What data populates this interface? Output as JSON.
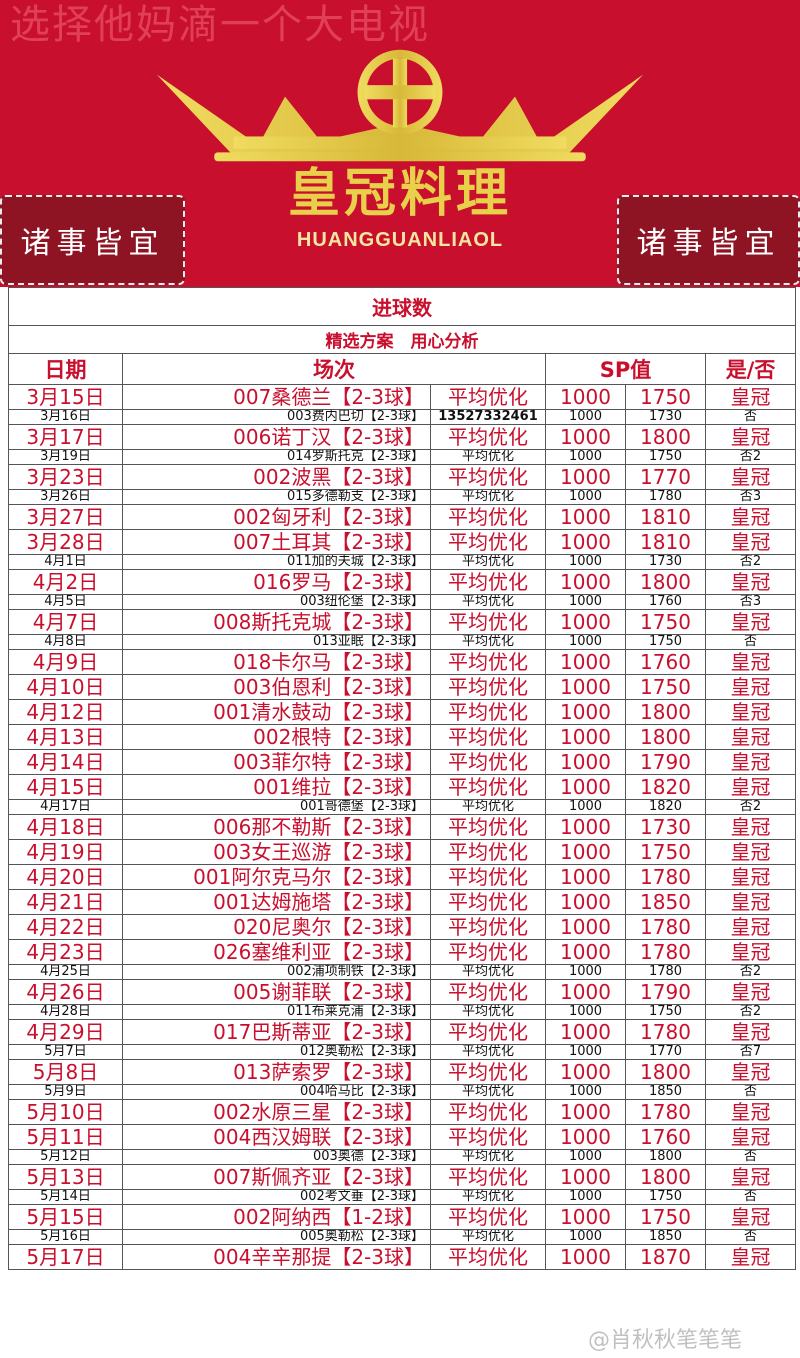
{
  "banner": {
    "watermark_top": "选择他妈滴一个大电视",
    "brand": "皇冠料理",
    "brand_sub": "HUANGGUANLIAOL",
    "side_left": "诸事皆宜",
    "side_right": "诸事皆宜",
    "colors": {
      "red": "#c8102e",
      "gold": "#e8d04a",
      "dark_red": "#8e1424"
    }
  },
  "table": {
    "title": "进球数",
    "subtitle": "精选方案　用心分析",
    "headers": [
      "日期",
      "场次",
      "SP值",
      "是/否"
    ],
    "rows": [
      {
        "date": "3月15日",
        "match": "007桑德兰【2-3球】",
        "type": "平均优化",
        "sp1": "1000",
        "sp2": "1750",
        "result": "皇冠",
        "highlight": true
      },
      {
        "date": "3月16日",
        "match": "003费内巴切【2-3球】",
        "type": "13527332461",
        "sp1": "1000",
        "sp2": "1730",
        "result": "否",
        "highlight": false
      },
      {
        "date": "3月17日",
        "match": "006诺丁汉【2-3球】",
        "type": "平均优化",
        "sp1": "1000",
        "sp2": "1800",
        "result": "皇冠",
        "highlight": true
      },
      {
        "date": "3月19日",
        "match": "014罗斯托克【2-3球】",
        "type": "平均优化",
        "sp1": "1000",
        "sp2": "1750",
        "result": "否2",
        "highlight": false
      },
      {
        "date": "3月23日",
        "match": "002波黑【2-3球】",
        "type": "平均优化",
        "sp1": "1000",
        "sp2": "1770",
        "result": "皇冠",
        "highlight": true
      },
      {
        "date": "3月26日",
        "match": "015多德勒支【2-3球】",
        "type": "平均优化",
        "sp1": "1000",
        "sp2": "1780",
        "result": "否3",
        "highlight": false
      },
      {
        "date": "3月27日",
        "match": "002匈牙利【2-3球】",
        "type": "平均优化",
        "sp1": "1000",
        "sp2": "1810",
        "result": "皇冠",
        "highlight": true
      },
      {
        "date": "3月28日",
        "match": "007土耳其【2-3球】",
        "type": "平均优化",
        "sp1": "1000",
        "sp2": "1810",
        "result": "皇冠",
        "highlight": true
      },
      {
        "date": "4月1日",
        "match": "011加的夫城【2-3球】",
        "type": "平均优化",
        "sp1": "1000",
        "sp2": "1730",
        "result": "否2",
        "highlight": false
      },
      {
        "date": "4月2日",
        "match": "016罗马【2-3球】",
        "type": "平均优化",
        "sp1": "1000",
        "sp2": "1800",
        "result": "皇冠",
        "highlight": true
      },
      {
        "date": "4月5日",
        "match": "003纽伦堡【2-3球】",
        "type": "平均优化",
        "sp1": "1000",
        "sp2": "1760",
        "result": "否3",
        "highlight": false
      },
      {
        "date": "4月7日",
        "match": "008斯托克城【2-3球】",
        "type": "平均优化",
        "sp1": "1000",
        "sp2": "1750",
        "result": "皇冠",
        "highlight": true
      },
      {
        "date": "4月8日",
        "match": "013亚眠【2-3球】",
        "type": "平均优化",
        "sp1": "1000",
        "sp2": "1750",
        "result": "否",
        "highlight": false
      },
      {
        "date": "4月9日",
        "match": "018卡尔马【2-3球】",
        "type": "平均优化",
        "sp1": "1000",
        "sp2": "1760",
        "result": "皇冠",
        "highlight": true
      },
      {
        "date": "4月10日",
        "match": "003伯恩利【2-3球】",
        "type": "平均优化",
        "sp1": "1000",
        "sp2": "1750",
        "result": "皇冠",
        "highlight": true
      },
      {
        "date": "4月12日",
        "match": "001清水鼓动【2-3球】",
        "type": "平均优化",
        "sp1": "1000",
        "sp2": "1800",
        "result": "皇冠",
        "highlight": true
      },
      {
        "date": "4月13日",
        "match": "002根特【2-3球】",
        "type": "平均优化",
        "sp1": "1000",
        "sp2": "1800",
        "result": "皇冠",
        "highlight": true
      },
      {
        "date": "4月14日",
        "match": "003菲尔特【2-3球】",
        "type": "平均优化",
        "sp1": "1000",
        "sp2": "1790",
        "result": "皇冠",
        "highlight": true
      },
      {
        "date": "4月15日",
        "match": "001维拉【2-3球】",
        "type": "平均优化",
        "sp1": "1000",
        "sp2": "1820",
        "result": "皇冠",
        "highlight": true
      },
      {
        "date": "4月17日",
        "match": "001哥德堡【2-3球】",
        "type": "平均优化",
        "sp1": "1000",
        "sp2": "1820",
        "result": "否2",
        "highlight": false
      },
      {
        "date": "4月18日",
        "match": "006那不勒斯【2-3球】",
        "type": "平均优化",
        "sp1": "1000",
        "sp2": "1730",
        "result": "皇冠",
        "highlight": true
      },
      {
        "date": "4月19日",
        "match": "003女王巡游【2-3球】",
        "type": "平均优化",
        "sp1": "1000",
        "sp2": "1750",
        "result": "皇冠",
        "highlight": true
      },
      {
        "date": "4月20日",
        "match": "001阿尔克马尔【2-3球】",
        "type": "平均优化",
        "sp1": "1000",
        "sp2": "1780",
        "result": "皇冠",
        "highlight": true
      },
      {
        "date": "4月21日",
        "match": "001达姆施塔【2-3球】",
        "type": "平均优化",
        "sp1": "1000",
        "sp2": "1850",
        "result": "皇冠",
        "highlight": true
      },
      {
        "date": "4月22日",
        "match": "020尼奥尔【2-3球】",
        "type": "平均优化",
        "sp1": "1000",
        "sp2": "1780",
        "result": "皇冠",
        "highlight": true
      },
      {
        "date": "4月23日",
        "match": "026塞维利亚【2-3球】",
        "type": "平均优化",
        "sp1": "1000",
        "sp2": "1780",
        "result": "皇冠",
        "highlight": true
      },
      {
        "date": "4月25日",
        "match": "002浦项制铁【2-3球】",
        "type": "平均优化",
        "sp1": "1000",
        "sp2": "1780",
        "result": "否2",
        "highlight": false
      },
      {
        "date": "4月26日",
        "match": "005谢菲联【2-3球】",
        "type": "平均优化",
        "sp1": "1000",
        "sp2": "1790",
        "result": "皇冠",
        "highlight": true
      },
      {
        "date": "4月28日",
        "match": "011布莱克浦【2-3球】",
        "type": "平均优化",
        "sp1": "1000",
        "sp2": "1750",
        "result": "否2",
        "highlight": false
      },
      {
        "date": "4月29日",
        "match": "017巴斯蒂亚【2-3球】",
        "type": "平均优化",
        "sp1": "1000",
        "sp2": "1780",
        "result": "皇冠",
        "highlight": true
      },
      {
        "date": "5月7日",
        "match": "012奥勒松【2-3球】",
        "type": "平均优化",
        "sp1": "1000",
        "sp2": "1770",
        "result": "否7",
        "highlight": false
      },
      {
        "date": "5月8日",
        "match": "013萨索罗【2-3球】",
        "type": "平均优化",
        "sp1": "1000",
        "sp2": "1800",
        "result": "皇冠",
        "highlight": true
      },
      {
        "date": "5月9日",
        "match": "004哈马比【2-3球】",
        "type": "平均优化",
        "sp1": "1000",
        "sp2": "1850",
        "result": "否",
        "highlight": false
      },
      {
        "date": "5月10日",
        "match": "002水原三星【2-3球】",
        "type": "平均优化",
        "sp1": "1000",
        "sp2": "1780",
        "result": "皇冠",
        "highlight": true
      },
      {
        "date": "5月11日",
        "match": "004西汉姆联【2-3球】",
        "type": "平均优化",
        "sp1": "1000",
        "sp2": "1760",
        "result": "皇冠",
        "highlight": true
      },
      {
        "date": "5月12日",
        "match": "003奥德【2-3球】",
        "type": "平均优化",
        "sp1": "1000",
        "sp2": "1800",
        "result": "否",
        "highlight": false
      },
      {
        "date": "5月13日",
        "match": "007斯佩齐亚【2-3球】",
        "type": "平均优化",
        "sp1": "1000",
        "sp2": "1800",
        "result": "皇冠",
        "highlight": true
      },
      {
        "date": "5月14日",
        "match": "002考文垂【2-3球】",
        "type": "平均优化",
        "sp1": "1000",
        "sp2": "1750",
        "result": "否",
        "highlight": false
      },
      {
        "date": "5月15日",
        "match": "002阿纳西【1-2球】",
        "type": "平均优化",
        "sp1": "1000",
        "sp2": "1750",
        "result": "皇冠",
        "highlight": true
      },
      {
        "date": "5月16日",
        "match": "005奥勒松【2-3球】",
        "type": "平均优化",
        "sp1": "1000",
        "sp2": "1850",
        "result": "否",
        "highlight": false
      },
      {
        "date": "5月17日",
        "match": "004辛辛那提【2-3球】",
        "type": "平均优化",
        "sp1": "1000",
        "sp2": "1870",
        "result": "皇冠",
        "highlight": true
      }
    ]
  },
  "watermark_bottom": "@肖秋秋笔笔笔"
}
